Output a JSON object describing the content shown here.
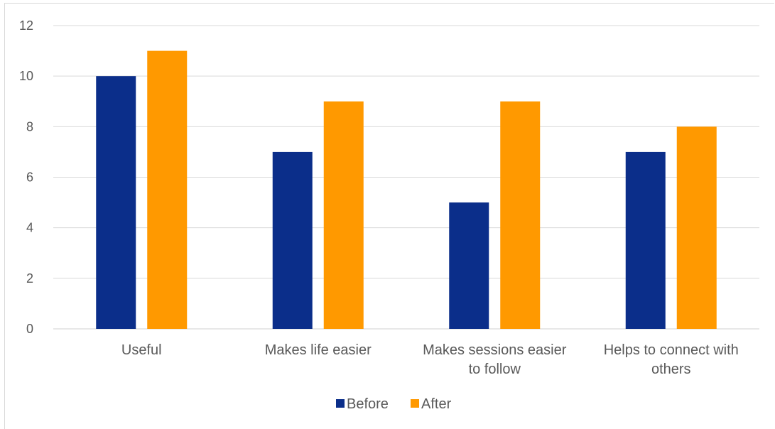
{
  "chart_data": {
    "type": "bar",
    "categories": [
      [
        "Useful"
      ],
      [
        "Makes life easier"
      ],
      [
        "Makes sessions easier",
        "to follow"
      ],
      [
        "Helps to connect with",
        "others"
      ]
    ],
    "series": [
      {
        "name": "Before",
        "values": [
          10,
          7,
          5,
          7
        ],
        "color": "#0b2e8a"
      },
      {
        "name": "After",
        "values": [
          11,
          9,
          9,
          8
        ],
        "color": "#ff9900"
      }
    ],
    "ylim": [
      0,
      12
    ],
    "yticks": [
      0,
      2,
      4,
      6,
      8,
      10,
      12
    ],
    "grid": true,
    "legend_position": "bottom",
    "title": "",
    "xlabel": "",
    "ylabel": ""
  }
}
